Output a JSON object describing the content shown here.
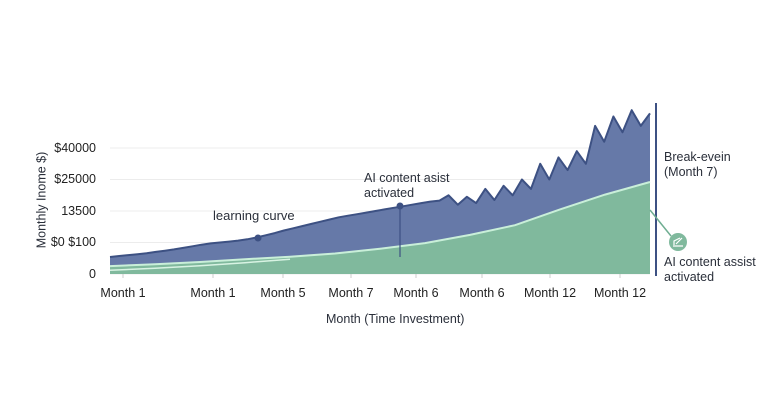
{
  "chart_data": {
    "type": "area",
    "title": "",
    "xlabel": "Month (Time Investment)",
    "ylabel": "Monthly Inome $)",
    "x_tick_labels": [
      "Month 1",
      "Month 1",
      "Month 5",
      "Month 7",
      "Month 6",
      "Month 6",
      "Month 12",
      "Month 12"
    ],
    "y_tick_labels": [
      "0",
      "$0 $100",
      "13500",
      "$25000",
      "$40000"
    ],
    "ylim_tick_levels": [
      0,
      5.5
    ],
    "grid": true,
    "legend": "none",
    "series": [
      {
        "values": [
          0.54,
          0.57,
          0.6,
          0.63,
          0.66,
          0.7,
          0.74,
          0.78,
          0.83,
          0.88,
          0.93,
          0.97,
          1.0,
          1.03,
          1.06,
          1.1,
          1.16,
          1.23,
          1.3,
          1.38,
          1.45,
          1.52,
          1.59,
          1.66,
          1.73,
          1.8,
          1.85,
          1.9,
          1.95,
          2.0,
          2.05,
          2.1,
          2.15,
          2.2,
          2.25,
          2.3,
          2.33,
          2.5,
          2.2,
          2.45,
          2.25,
          2.7,
          2.35,
          2.8,
          2.5,
          3.0,
          2.7,
          3.5,
          3.0,
          3.7,
          3.3,
          3.9,
          3.5,
          4.7,
          4.2,
          5.0,
          4.5,
          5.2,
          4.7,
          5.1
        ],
        "color": "#3d5183",
        "fill": "#6679a8"
      },
      {
        "values": [
          0.25,
          0.31,
          0.38,
          0.47,
          0.55,
          0.65,
          0.8,
          0.98,
          1.24,
          1.55,
          2.05,
          2.52,
          2.92
        ],
        "color": "#c9efd9",
        "fill": "#80b99d"
      },
      {
        "values": [
          0.12,
          0.18,
          0.26,
          0.36,
          0.47
        ],
        "color": "#d8f3e3"
      }
    ],
    "annotations": [
      {
        "text": "learning curve"
      },
      {
        "text": "AI content asist\nactivated"
      },
      {
        "text": "Break-evein\n(Month 7)"
      },
      {
        "text": "AI content assist\nactivated",
        "icon": "edit-icon"
      }
    ]
  }
}
